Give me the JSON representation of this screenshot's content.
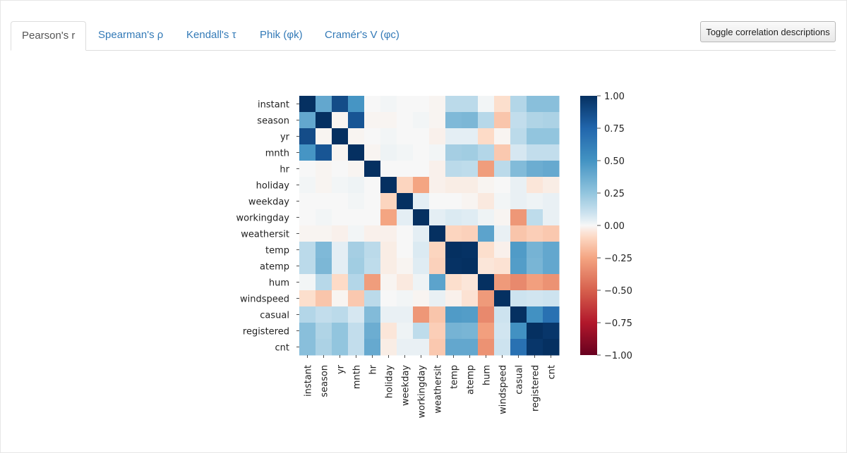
{
  "tabs": [
    {
      "label": "Pearson's r",
      "active": true
    },
    {
      "label": "Spearman's ρ",
      "active": false
    },
    {
      "label": "Kendall's τ",
      "active": false
    },
    {
      "label": "Phik (φk)",
      "active": false
    },
    {
      "label": "Cramér's V (φc)",
      "active": false
    }
  ],
  "toggle_button_label": "Toggle correlation descriptions",
  "chart_data": {
    "type": "heatmap",
    "title": "Pearson's r",
    "labels": [
      "instant",
      "season",
      "yr",
      "mnth",
      "hr",
      "holiday",
      "weekday",
      "workingday",
      "weathersit",
      "temp",
      "atemp",
      "hum",
      "windspeed",
      "casual",
      "registered",
      "cnt"
    ],
    "matrix": [
      [
        1.0,
        0.4,
        0.87,
        0.49,
        -0.0,
        0.01,
        0.0,
        -0.0,
        -0.01,
        0.14,
        0.14,
        0.01,
        -0.07,
        0.16,
        0.28,
        0.28
      ],
      [
        0.4,
        1.0,
        -0.01,
        0.83,
        -0.01,
        -0.01,
        -0.0,
        0.01,
        -0.01,
        0.31,
        0.32,
        0.15,
        -0.15,
        0.12,
        0.17,
        0.18
      ],
      [
        0.87,
        -0.01,
        1.0,
        -0.01,
        -0.0,
        0.01,
        -0.0,
        -0.0,
        -0.02,
        0.04,
        0.04,
        -0.08,
        -0.01,
        0.14,
        0.25,
        0.25
      ],
      [
        0.49,
        0.83,
        -0.01,
        1.0,
        -0.01,
        0.02,
        0.01,
        -0.0,
        0.01,
        0.2,
        0.21,
        0.16,
        -0.14,
        0.07,
        0.12,
        0.12
      ],
      [
        -0.0,
        -0.01,
        -0.0,
        -0.01,
        1.0,
        0.0,
        -0.0,
        0.0,
        -0.02,
        0.14,
        0.13,
        -0.28,
        0.14,
        0.3,
        0.37,
        0.39
      ],
      [
        0.01,
        -0.01,
        0.01,
        0.02,
        0.0,
        1.0,
        -0.1,
        -0.25,
        -0.02,
        -0.03,
        -0.03,
        -0.01,
        0.0,
        0.03,
        -0.05,
        -0.03
      ],
      [
        0.0,
        -0.0,
        -0.0,
        0.01,
        -0.0,
        -0.1,
        1.0,
        0.04,
        0.0,
        -0.0,
        -0.01,
        -0.04,
        0.01,
        0.03,
        0.02,
        0.03
      ],
      [
        -0.0,
        0.01,
        -0.0,
        -0.0,
        0.0,
        -0.25,
        0.04,
        1.0,
        0.04,
        0.06,
        0.05,
        0.02,
        -0.01,
        -0.3,
        0.13,
        0.03
      ],
      [
        -0.01,
        -0.01,
        -0.02,
        0.01,
        -0.02,
        -0.02,
        0.0,
        0.04,
        1.0,
        -0.1,
        -0.11,
        0.42,
        0.03,
        -0.15,
        -0.12,
        -0.14
      ],
      [
        0.14,
        0.31,
        0.04,
        0.2,
        0.14,
        -0.03,
        -0.0,
        0.06,
        -0.1,
        1.0,
        0.99,
        -0.07,
        -0.02,
        0.46,
        0.34,
        0.4
      ],
      [
        0.14,
        0.32,
        0.04,
        0.21,
        0.13,
        -0.03,
        -0.01,
        0.05,
        -0.11,
        0.99,
        1.0,
        -0.05,
        -0.06,
        0.45,
        0.33,
        0.4
      ],
      [
        0.01,
        0.15,
        -0.08,
        0.16,
        -0.28,
        -0.01,
        -0.04,
        0.02,
        0.42,
        -0.07,
        -0.05,
        1.0,
        -0.29,
        -0.35,
        -0.27,
        -0.32
      ],
      [
        -0.07,
        -0.15,
        -0.01,
        -0.14,
        0.14,
        0.0,
        0.01,
        -0.01,
        0.03,
        -0.02,
        -0.06,
        -0.29,
        1.0,
        0.09,
        0.08,
        0.09
      ],
      [
        0.16,
        0.12,
        0.14,
        0.07,
        0.3,
        0.03,
        0.03,
        -0.3,
        -0.15,
        0.46,
        0.45,
        -0.35,
        0.09,
        1.0,
        0.51,
        0.69
      ],
      [
        0.28,
        0.17,
        0.25,
        0.12,
        0.37,
        -0.05,
        0.02,
        0.13,
        -0.12,
        0.34,
        0.33,
        -0.27,
        0.08,
        0.51,
        1.0,
        0.97
      ],
      [
        0.28,
        0.18,
        0.25,
        0.12,
        0.39,
        -0.03,
        0.03,
        0.03,
        -0.14,
        0.4,
        0.4,
        -0.32,
        0.09,
        0.69,
        0.97,
        1.0
      ]
    ],
    "colormap": "RdBu",
    "colorbar": {
      "range": [
        -1.0,
        1.0
      ],
      "ticks": [
        "1.00",
        "0.75",
        "0.50",
        "0.25",
        "0.00",
        "−0.25",
        "−0.50",
        "−0.75",
        "−1.00"
      ]
    }
  },
  "colors": {
    "link": "#337ab7",
    "active_tab_text": "#555555",
    "border": "#dddddd"
  }
}
